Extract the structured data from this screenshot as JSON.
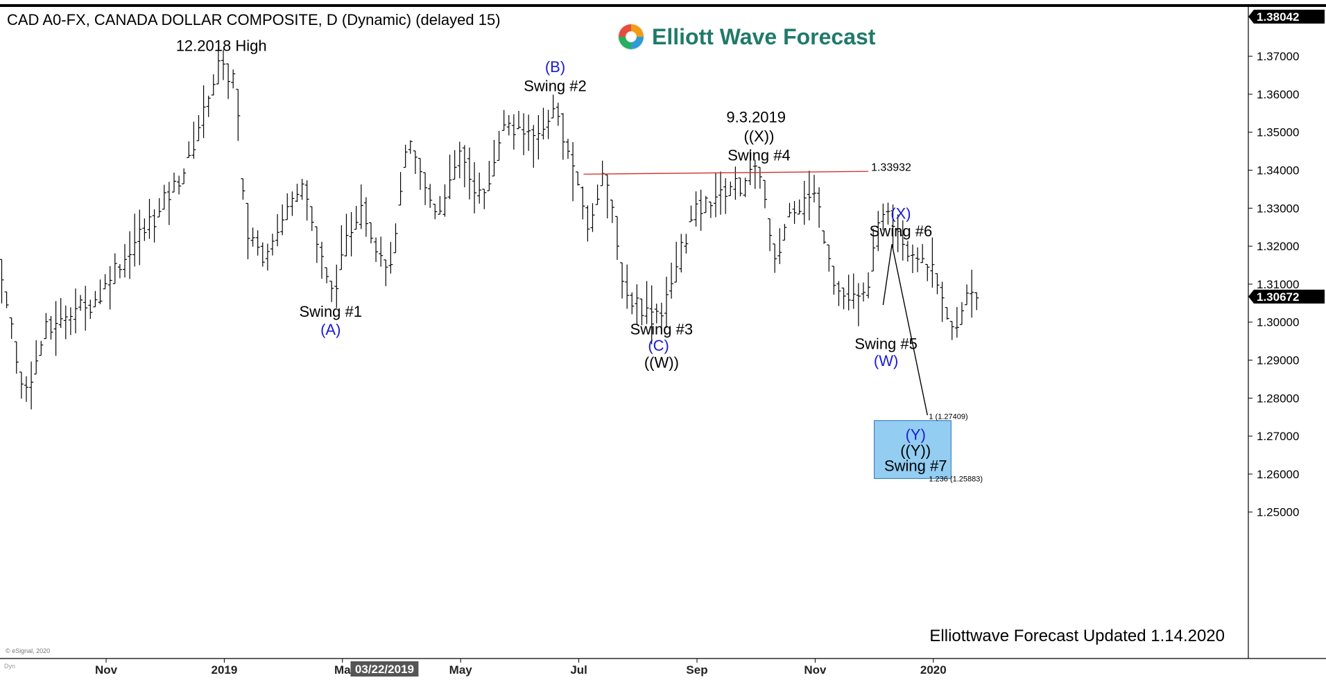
{
  "header": {
    "title": "CAD A0-FX, CANADA DOLLAR COMPOSITE, D (Dynamic) (delayed 15)",
    "logo_text": "Elliott Wave Forecast",
    "footer": "Elliottwave Forecast Updated 1.14.2020",
    "copyright": "© eSignal, 2020",
    "dyn_label": "Dyn"
  },
  "colors": {
    "blue_label": "#1a1ad6",
    "black_label": "#000000",
    "resistance_line": "#d42a2a",
    "target_box": "#93cdf2",
    "target_border": "#2a6fb4",
    "logo_green": "#1f7a6a"
  },
  "chart_data": {
    "type": "ohlc-bar",
    "y_axis": {
      "min": 1.244,
      "max": 1.3828,
      "ticks": [
        "1.37000",
        "1.36000",
        "1.35000",
        "1.34000",
        "1.33000",
        "1.32000",
        "1.31000",
        "1.30000",
        "1.29000",
        "1.28000",
        "1.27000",
        "1.26000",
        "1.25000"
      ],
      "tick_values": [
        1.37,
        1.36,
        1.35,
        1.34,
        1.33,
        1.32,
        1.31,
        1.3,
        1.29,
        1.28,
        1.27,
        1.26,
        1.25
      ]
    },
    "x_axis": {
      "labels": [
        "Nov",
        "2019",
        "Ma",
        "May",
        "Jul",
        "Sep",
        "Nov",
        "2020"
      ],
      "label_months": [
        1,
        3,
        5,
        7,
        9,
        11,
        13,
        15
      ],
      "cursor_label": "03/22/2019",
      "cursor_month": 5.7
    },
    "price_badges": [
      {
        "text": "1.38042",
        "value": 1.38042
      },
      {
        "text": "1.30672",
        "value": 1.30672
      }
    ],
    "resistance": {
      "text": "1.33932",
      "value": 1.33932,
      "from_month": 9.08,
      "to_month": 13.9
    },
    "target": {
      "top_value": 1.27409,
      "bottom_value": 1.25883,
      "from_month": 14.0,
      "to_month": 15.3,
      "top_label": "1 (1.27409)",
      "bottom_label": "1.236 (1.25883)"
    },
    "projection": [
      {
        "month": 14.15,
        "value": 1.3045
      },
      {
        "month": 14.3,
        "value": 1.3205
      },
      {
        "month": 14.9,
        "value": 1.2755
      }
    ],
    "swing_points": [
      {
        "month": -0.85,
        "value": 1.319
      },
      {
        "month": -0.4,
        "value": 1.281
      },
      {
        "month": 0.0,
        "value": 1.298
      },
      {
        "month": 0.8,
        "value": 1.306
      },
      {
        "month": 1.6,
        "value": 1.323
      },
      {
        "month": 2.3,
        "value": 1.339
      },
      {
        "month": 2.9,
        "value": 1.367
      },
      {
        "month": 3.2,
        "value": 1.363
      },
      {
        "month": 3.35,
        "value": 1.325
      },
      {
        "month": 3.7,
        "value": 1.318
      },
      {
        "month": 4.3,
        "value": 1.338
      },
      {
        "month": 4.8,
        "value": 1.307
      },
      {
        "month": 5.3,
        "value": 1.332
      },
      {
        "month": 5.8,
        "value": 1.313
      },
      {
        "month": 6.1,
        "value": 1.346
      },
      {
        "month": 6.6,
        "value": 1.329
      },
      {
        "month": 7.0,
        "value": 1.344
      },
      {
        "month": 7.4,
        "value": 1.332
      },
      {
        "month": 7.7,
        "value": 1.352
      },
      {
        "month": 8.3,
        "value": 1.349
      },
      {
        "month": 8.6,
        "value": 1.3565
      },
      {
        "month": 9.2,
        "value": 1.324
      },
      {
        "month": 9.4,
        "value": 1.342
      },
      {
        "month": 9.8,
        "value": 1.307
      },
      {
        "month": 10.4,
        "value": 1.302
      },
      {
        "month": 10.9,
        "value": 1.327
      },
      {
        "month": 11.4,
        "value": 1.334
      },
      {
        "month": 12.1,
        "value": 1.3393
      },
      {
        "month": 12.3,
        "value": 1.314
      },
      {
        "month": 12.6,
        "value": 1.331
      },
      {
        "month": 13.0,
        "value": 1.334
      },
      {
        "month": 13.4,
        "value": 1.307
      },
      {
        "month": 13.8,
        "value": 1.305
      },
      {
        "month": 14.2,
        "value": 1.332
      },
      {
        "month": 14.6,
        "value": 1.319
      },
      {
        "month": 15.0,
        "value": 1.313
      },
      {
        "month": 15.35,
        "value": 1.2955
      },
      {
        "month": 15.6,
        "value": 1.31
      },
      {
        "month": 15.75,
        "value": 1.3067
      }
    ],
    "annotations": [
      {
        "text": "12.2018 High",
        "month": 2.95,
        "value": 1.3714,
        "color": "black"
      },
      {
        "text": "(B)",
        "month": 8.6,
        "value": 1.3658,
        "color": "blue"
      },
      {
        "text": "Swing #2",
        "month": 8.6,
        "value": 1.3608,
        "color": "black"
      },
      {
        "text": "9.3.2019",
        "month": 12.0,
        "value": 1.3526,
        "color": "black"
      },
      {
        "text": "((X))",
        "month": 12.05,
        "value": 1.3476,
        "color": "black"
      },
      {
        "text": "Swing #4",
        "month": 12.05,
        "value": 1.3426,
        "color": "black"
      },
      {
        "text": "Swing #1",
        "month": 4.8,
        "value": 1.3014,
        "color": "black"
      },
      {
        "text": "(A)",
        "month": 4.8,
        "value": 1.2967,
        "color": "blue"
      },
      {
        "text": "Swing #3",
        "month": 10.4,
        "value": 1.2968,
        "color": "black"
      },
      {
        "text": "(C)",
        "month": 10.35,
        "value": 1.2925,
        "color": "blue"
      },
      {
        "text": "((W))",
        "month": 10.4,
        "value": 1.288,
        "color": "black"
      },
      {
        "text": "(X)",
        "month": 14.45,
        "value": 1.3272,
        "color": "blue"
      },
      {
        "text": "Swing #6",
        "month": 14.45,
        "value": 1.3226,
        "color": "black"
      },
      {
        "text": "Swing #5",
        "month": 14.2,
        "value": 1.2929,
        "color": "black"
      },
      {
        "text": "(W)",
        "month": 14.2,
        "value": 1.2885,
        "color": "blue"
      },
      {
        "text": "(Y)",
        "month": 14.7,
        "value": 1.269,
        "color": "blue"
      },
      {
        "text": "((Y))",
        "month": 14.7,
        "value": 1.2648,
        "color": "black"
      },
      {
        "text": "Swing #7",
        "month": 14.7,
        "value": 1.2608,
        "color": "black"
      }
    ]
  }
}
